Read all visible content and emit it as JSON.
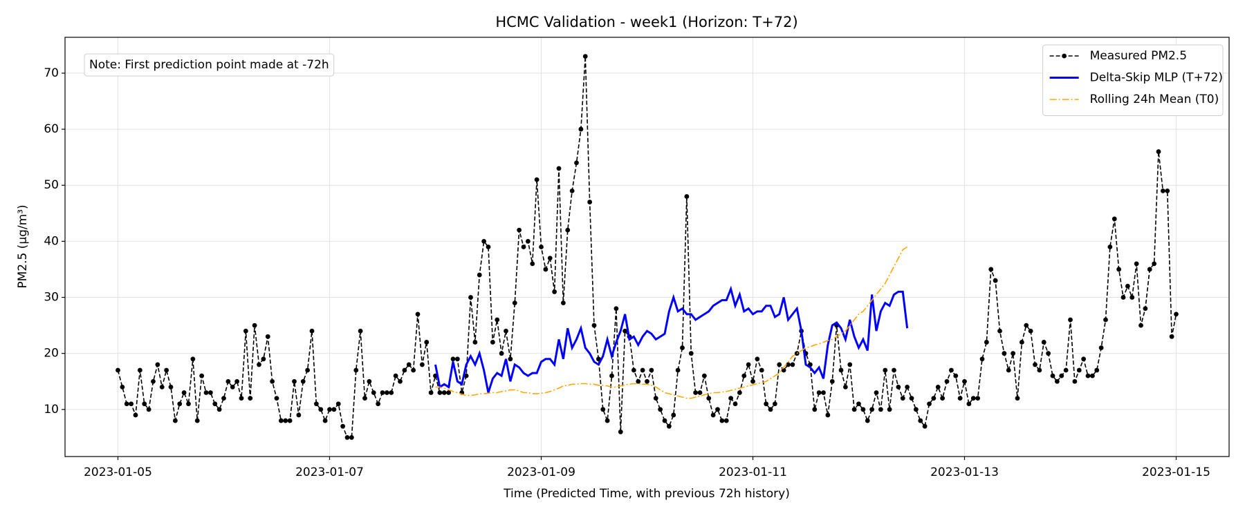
{
  "chart_data": {
    "type": "line",
    "title": "HCMC Validation - week1 (Horizon: T+72)",
    "xlabel": "Time (Predicted Time, with previous 72h history)",
    "ylabel": "PM2.5 (µg/m³)",
    "annotation": "Note: First prediction point made at -72h",
    "legend": "upper right",
    "grid": true,
    "xlim": [
      "2023-01-04T12:00",
      "2023-01-15T12:00"
    ],
    "ylim": [
      1.6,
      76.4
    ],
    "xticks": [
      {
        "value": "2023-01-05T00:00",
        "label": "2023-01-05"
      },
      {
        "value": "2023-01-07T00:00",
        "label": "2023-01-07"
      },
      {
        "value": "2023-01-09T00:00",
        "label": "2023-01-09"
      },
      {
        "value": "2023-01-11T00:00",
        "label": "2023-01-11"
      },
      {
        "value": "2023-01-13T00:00",
        "label": "2023-01-13"
      },
      {
        "value": "2023-01-15T00:00",
        "label": "2023-01-15"
      }
    ],
    "yticks": [
      10,
      20,
      30,
      40,
      50,
      60,
      70
    ],
    "x": [
      "2023-01-05T00:00",
      "2023-01-05T01:00",
      "2023-01-05T02:00",
      "2023-01-05T03:00",
      "2023-01-05T04:00",
      "2023-01-05T05:00",
      "2023-01-05T06:00",
      "2023-01-05T07:00",
      "2023-01-05T08:00",
      "2023-01-05T09:00",
      "2023-01-05T10:00",
      "2023-01-05T11:00",
      "2023-01-05T12:00",
      "2023-01-05T13:00",
      "2023-01-05T14:00",
      "2023-01-05T15:00",
      "2023-01-05T16:00",
      "2023-01-05T17:00",
      "2023-01-05T18:00",
      "2023-01-05T19:00",
      "2023-01-05T20:00",
      "2023-01-05T21:00",
      "2023-01-05T22:00",
      "2023-01-05T23:00",
      "2023-01-06T00:00",
      "2023-01-06T01:00",
      "2023-01-06T02:00",
      "2023-01-06T03:00",
      "2023-01-06T04:00",
      "2023-01-06T05:00",
      "2023-01-06T06:00",
      "2023-01-06T07:00",
      "2023-01-06T08:00",
      "2023-01-06T09:00",
      "2023-01-06T10:00",
      "2023-01-06T11:00",
      "2023-01-06T12:00",
      "2023-01-06T13:00",
      "2023-01-06T14:00",
      "2023-01-06T15:00",
      "2023-01-06T16:00",
      "2023-01-06T17:00",
      "2023-01-06T18:00",
      "2023-01-06T19:00",
      "2023-01-06T20:00",
      "2023-01-06T21:00",
      "2023-01-06T22:00",
      "2023-01-06T23:00",
      "2023-01-07T00:00",
      "2023-01-07T01:00",
      "2023-01-07T02:00",
      "2023-01-07T03:00",
      "2023-01-07T04:00",
      "2023-01-07T05:00",
      "2023-01-07T06:00",
      "2023-01-07T07:00",
      "2023-01-07T08:00",
      "2023-01-07T09:00",
      "2023-01-07T10:00",
      "2023-01-07T11:00",
      "2023-01-07T12:00",
      "2023-01-07T13:00",
      "2023-01-07T14:00",
      "2023-01-07T15:00",
      "2023-01-07T16:00",
      "2023-01-07T17:00",
      "2023-01-07T18:00",
      "2023-01-07T19:00",
      "2023-01-07T20:00",
      "2023-01-07T21:00",
      "2023-01-07T22:00",
      "2023-01-07T23:00",
      "2023-01-08T00:00",
      "2023-01-08T01:00",
      "2023-01-08T02:00",
      "2023-01-08T03:00",
      "2023-01-08T04:00",
      "2023-01-08T05:00",
      "2023-01-08T06:00",
      "2023-01-08T07:00",
      "2023-01-08T08:00",
      "2023-01-08T09:00",
      "2023-01-08T10:00",
      "2023-01-08T11:00",
      "2023-01-08T12:00",
      "2023-01-08T13:00",
      "2023-01-08T14:00",
      "2023-01-08T15:00",
      "2023-01-08T16:00",
      "2023-01-08T17:00",
      "2023-01-08T18:00",
      "2023-01-08T19:00",
      "2023-01-08T20:00",
      "2023-01-08T21:00",
      "2023-01-08T22:00",
      "2023-01-08T23:00",
      "2023-01-09T00:00",
      "2023-01-09T01:00",
      "2023-01-09T02:00",
      "2023-01-09T03:00",
      "2023-01-09T04:00",
      "2023-01-09T05:00",
      "2023-01-09T06:00",
      "2023-01-09T07:00",
      "2023-01-09T08:00",
      "2023-01-09T09:00",
      "2023-01-09T10:00",
      "2023-01-09T11:00",
      "2023-01-09T12:00",
      "2023-01-09T13:00",
      "2023-01-09T14:00",
      "2023-01-09T15:00",
      "2023-01-09T16:00",
      "2023-01-09T17:00",
      "2023-01-09T18:00",
      "2023-01-09T19:00",
      "2023-01-09T20:00",
      "2023-01-09T21:00",
      "2023-01-09T22:00",
      "2023-01-09T23:00",
      "2023-01-10T00:00",
      "2023-01-10T01:00",
      "2023-01-10T02:00",
      "2023-01-10T03:00",
      "2023-01-10T04:00",
      "2023-01-10T05:00",
      "2023-01-10T06:00",
      "2023-01-10T07:00",
      "2023-01-10T08:00",
      "2023-01-10T09:00",
      "2023-01-10T10:00",
      "2023-01-10T11:00",
      "2023-01-10T12:00",
      "2023-01-10T13:00",
      "2023-01-10T14:00",
      "2023-01-10T15:00",
      "2023-01-10T16:00",
      "2023-01-10T17:00",
      "2023-01-10T18:00",
      "2023-01-10T19:00",
      "2023-01-10T20:00",
      "2023-01-10T21:00",
      "2023-01-10T22:00",
      "2023-01-10T23:00",
      "2023-01-11T00:00",
      "2023-01-11T01:00",
      "2023-01-11T02:00",
      "2023-01-11T03:00",
      "2023-01-11T04:00",
      "2023-01-11T05:00",
      "2023-01-11T06:00",
      "2023-01-11T07:00",
      "2023-01-11T08:00",
      "2023-01-11T09:00",
      "2023-01-11T10:00",
      "2023-01-11T11:00",
      "2023-01-11T12:00",
      "2023-01-11T13:00",
      "2023-01-11T14:00",
      "2023-01-11T15:00",
      "2023-01-11T16:00",
      "2023-01-11T17:00",
      "2023-01-11T18:00",
      "2023-01-11T19:00",
      "2023-01-11T20:00",
      "2023-01-11T21:00",
      "2023-01-11T22:00",
      "2023-01-11T23:00",
      "2023-01-12T00:00",
      "2023-01-12T01:00",
      "2023-01-12T02:00",
      "2023-01-12T03:00",
      "2023-01-12T04:00",
      "2023-01-12T05:00",
      "2023-01-12T06:00",
      "2023-01-12T07:00",
      "2023-01-12T08:00",
      "2023-01-12T09:00",
      "2023-01-12T10:00",
      "2023-01-12T11:00",
      "2023-01-12T12:00",
      "2023-01-12T13:00",
      "2023-01-12T14:00",
      "2023-01-12T15:00",
      "2023-01-12T16:00",
      "2023-01-12T17:00",
      "2023-01-12T18:00",
      "2023-01-12T19:00",
      "2023-01-12T20:00",
      "2023-01-12T21:00",
      "2023-01-12T22:00",
      "2023-01-12T23:00",
      "2023-01-13T00:00",
      "2023-01-13T01:00",
      "2023-01-13T02:00",
      "2023-01-13T03:00",
      "2023-01-13T04:00",
      "2023-01-13T05:00",
      "2023-01-13T06:00",
      "2023-01-13T07:00",
      "2023-01-13T08:00",
      "2023-01-13T09:00",
      "2023-01-13T10:00",
      "2023-01-13T11:00",
      "2023-01-13T12:00",
      "2023-01-13T13:00",
      "2023-01-13T14:00",
      "2023-01-13T15:00",
      "2023-01-13T16:00",
      "2023-01-13T17:00",
      "2023-01-13T18:00",
      "2023-01-13T19:00",
      "2023-01-13T20:00",
      "2023-01-13T21:00",
      "2023-01-13T22:00",
      "2023-01-13T23:00",
      "2023-01-14T00:00",
      "2023-01-14T01:00",
      "2023-01-14T02:00",
      "2023-01-14T03:00",
      "2023-01-14T04:00",
      "2023-01-14T05:00",
      "2023-01-14T06:00",
      "2023-01-14T07:00",
      "2023-01-14T08:00",
      "2023-01-14T09:00",
      "2023-01-14T10:00",
      "2023-01-14T11:00",
      "2023-01-14T12:00",
      "2023-01-14T13:00",
      "2023-01-14T14:00",
      "2023-01-14T15:00",
      "2023-01-14T16:00",
      "2023-01-14T17:00",
      "2023-01-14T18:00",
      "2023-01-14T19:00",
      "2023-01-14T20:00",
      "2023-01-14T21:00",
      "2023-01-14T22:00",
      "2023-01-14T23:00",
      "2023-01-15T00:00"
    ],
    "series": [
      {
        "name": "Measured PM2.5",
        "color": "#000000",
        "style": "dashed",
        "marker": "o",
        "values": [
          17,
          14,
          11,
          11,
          9,
          17,
          11,
          10,
          15,
          18,
          14,
          17,
          14,
          8,
          11,
          13,
          11,
          19,
          8,
          16,
          13,
          13,
          11,
          10,
          12,
          15,
          14,
          15,
          12,
          24,
          12,
          25,
          18,
          19,
          23,
          15,
          12,
          8,
          8,
          8,
          15,
          9,
          15,
          17,
          24,
          11,
          10,
          8,
          10,
          10,
          11,
          7,
          5,
          5,
          17,
          24,
          12,
          15,
          13,
          11,
          13,
          13,
          13,
          16,
          15,
          17,
          18,
          17,
          27,
          18,
          22,
          13,
          16,
          13,
          13,
          13,
          19,
          19,
          13,
          16,
          30,
          22,
          34,
          40,
          39,
          22,
          26,
          20,
          24,
          19,
          29,
          42,
          39,
          40,
          36,
          51,
          39,
          35,
          37,
          31,
          53,
          29,
          42,
          49,
          54,
          60,
          73,
          47,
          25,
          19,
          10,
          8,
          16,
          28,
          6,
          24,
          23,
          17,
          15,
          17,
          15,
          17,
          12,
          10,
          8,
          7,
          9,
          17,
          21,
          48,
          20,
          13,
          13,
          16,
          12,
          9,
          10,
          8,
          8,
          12,
          11,
          13,
          16,
          18,
          15,
          19,
          17,
          11,
          10,
          11,
          18,
          17,
          18,
          18,
          20,
          24,
          20,
          18,
          10,
          13,
          13,
          9,
          15,
          25,
          17,
          14,
          18,
          10,
          11,
          10,
          8,
          10,
          13,
          10,
          17,
          10,
          17,
          14,
          12,
          14,
          12,
          10,
          8,
          7,
          11,
          12,
          14,
          12,
          15,
          17,
          16,
          12,
          15,
          11,
          12,
          12,
          19,
          22,
          35,
          33,
          24,
          20,
          17,
          20,
          12,
          22,
          25,
          24,
          18,
          17,
          22,
          20,
          16,
          15,
          16,
          17,
          26,
          15,
          17,
          19,
          16,
          16,
          17,
          21,
          26,
          39,
          44,
          35,
          30,
          32,
          30,
          36,
          25,
          28,
          35,
          36,
          56,
          49,
          49,
          23,
          27
        ]
      },
      {
        "name": "Delta-Skip MLP (T+72)",
        "color": "#0000ff",
        "style": "solid",
        "values": [
          null,
          null,
          null,
          null,
          null,
          null,
          null,
          null,
          null,
          null,
          null,
          null,
          null,
          null,
          null,
          null,
          null,
          null,
          null,
          null,
          null,
          null,
          null,
          null,
          null,
          null,
          null,
          null,
          null,
          null,
          null,
          null,
          null,
          null,
          null,
          null,
          null,
          null,
          null,
          null,
          null,
          null,
          null,
          null,
          null,
          null,
          null,
          null,
          null,
          null,
          null,
          null,
          null,
          null,
          null,
          null,
          null,
          null,
          null,
          null,
          null,
          null,
          null,
          null,
          null,
          null,
          null,
          null,
          null,
          null,
          null,
          null,
          18,
          14,
          14.5,
          14,
          18.5,
          15,
          14.5,
          18,
          19.5,
          18,
          20,
          17,
          13,
          15.5,
          16.5,
          16,
          19,
          15,
          18,
          17.5,
          16.5,
          16,
          16.5,
          16.5,
          18.5,
          19,
          19,
          18,
          22.5,
          19,
          24.5,
          21,
          22.5,
          24.5,
          21,
          20,
          18.5,
          18,
          19.5,
          22.5,
          19.5,
          22,
          24,
          27,
          22.5,
          23,
          21.5,
          23,
          24,
          23.5,
          22.5,
          23,
          23.5,
          27.5,
          30,
          27.5,
          28,
          27,
          27,
          26,
          26.5,
          27,
          27.5,
          28.5,
          29,
          29.5,
          29.5,
          31.5,
          28.5,
          30.5,
          27.5,
          28,
          27,
          27.5,
          27.5,
          28.5,
          28.5,
          26.5,
          27,
          30,
          26,
          27,
          28,
          24,
          18,
          17.5,
          16.5,
          17.5,
          15.5,
          21.5,
          25,
          25.5,
          24.5,
          22.5,
          26,
          23,
          21,
          22.5,
          20.5,
          30.5,
          24,
          27.5,
          29,
          28.5,
          30.5,
          31,
          31,
          24.5,
          null,
          null,
          null,
          null,
          null,
          null,
          null,
          null,
          null,
          null,
          null,
          null,
          null,
          null,
          null,
          null,
          null,
          null,
          null,
          null,
          null,
          null,
          null,
          null,
          null,
          null,
          null,
          null,
          null,
          null,
          null,
          null,
          null,
          null,
          null,
          null,
          null,
          null,
          null,
          null,
          null,
          null,
          null,
          null,
          null,
          null,
          null,
          null,
          null,
          null,
          null,
          null,
          null,
          null,
          null,
          null,
          null,
          null,
          null,
          null,
          null
        ]
      },
      {
        "name": "Rolling 24h Mean (T0)",
        "color": "#ffa500",
        "style": "dashdot",
        "values": [
          null,
          null,
          null,
          null,
          null,
          null,
          null,
          null,
          null,
          null,
          null,
          null,
          null,
          null,
          null,
          null,
          null,
          null,
          null,
          null,
          null,
          null,
          null,
          null,
          null,
          null,
          null,
          null,
          null,
          null,
          null,
          null,
          null,
          null,
          null,
          null,
          null,
          null,
          null,
          null,
          null,
          null,
          null,
          null,
          null,
          null,
          null,
          null,
          null,
          null,
          null,
          null,
          null,
          null,
          null,
          null,
          null,
          null,
          null,
          null,
          null,
          null,
          null,
          null,
          null,
          null,
          null,
          null,
          null,
          null,
          null,
          null,
          14,
          14,
          13.8,
          13.5,
          13.2,
          13,
          12.7,
          12.5,
          12.5,
          12.6,
          12.8,
          12.8,
          12.9,
          13,
          13,
          13.2,
          13.3,
          13.5,
          13.5,
          13.3,
          13,
          13,
          12.8,
          12.8,
          12.9,
          13,
          13.2,
          13.5,
          13.8,
          14.2,
          14.3,
          14.5,
          14.5,
          14.6,
          14.6,
          14.5,
          14.5,
          14.3,
          14.3,
          14.2,
          14,
          14,
          14.2,
          14.4,
          14.5,
          14.6,
          14.6,
          14.5,
          14.5,
          14.3,
          14,
          13.5,
          13,
          12.8,
          12.6,
          12.4,
          12.2,
          12,
          12,
          12.2,
          12.4,
          12.6,
          12.8,
          13,
          13,
          13.1,
          13.2,
          13.4,
          13.6,
          13.8,
          14,
          14.2,
          14.4,
          14.6,
          14.8,
          15,
          15.5,
          16,
          16.5,
          17.5,
          18.5,
          19.5,
          20,
          20.5,
          21,
          21.2,
          21.5,
          21.7,
          22,
          22.3,
          22.5,
          23,
          23.5,
          24,
          25,
          26,
          27,
          27.5,
          28.5,
          29.5,
          30.5,
          31.5,
          32.5,
          34,
          35.5,
          37,
          38.5,
          39,
          null,
          null,
          null,
          null,
          null,
          null,
          null,
          null,
          null,
          null,
          null,
          null,
          null,
          null,
          null,
          null,
          null,
          null,
          null,
          null,
          null,
          null,
          null,
          null,
          null,
          null,
          null,
          null,
          null,
          null,
          null,
          null,
          null,
          null,
          null,
          null,
          null,
          null,
          null,
          null,
          null,
          null,
          null,
          null,
          null,
          null,
          null,
          null,
          null,
          null,
          null,
          null,
          null,
          null,
          null,
          null,
          null,
          null,
          null,
          null,
          null
        ]
      }
    ]
  }
}
